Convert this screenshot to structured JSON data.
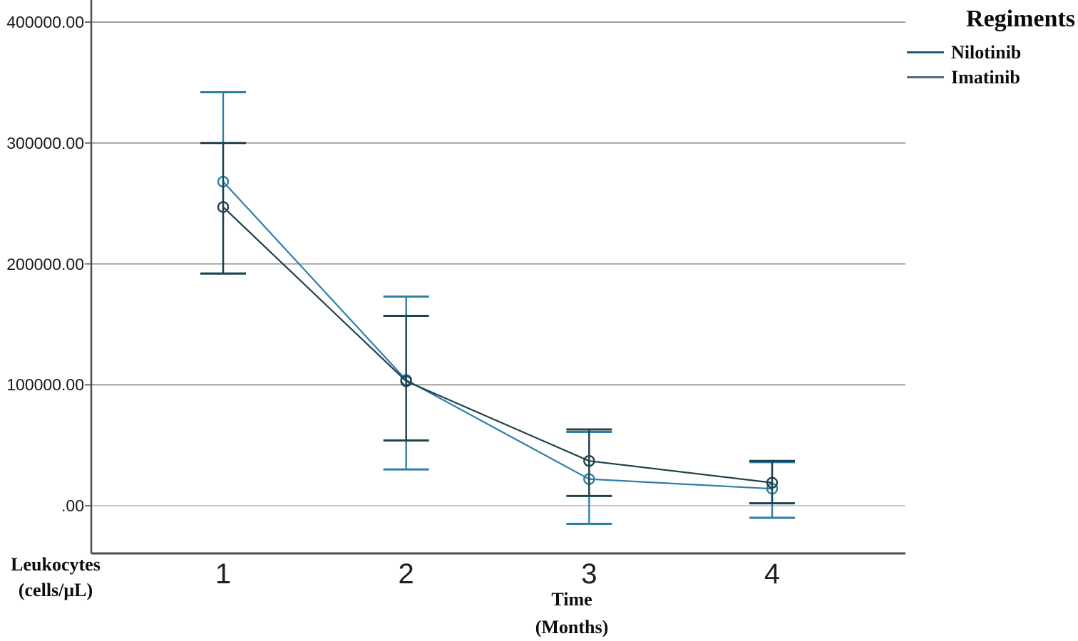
{
  "chart_data": {
    "type": "line",
    "x": [
      1,
      2,
      3,
      4
    ],
    "categories": [
      "1",
      "2",
      "3",
      "4"
    ],
    "xlabel": "Time (Months)",
    "xlabel_lines": [
      "Time",
      "(Months)"
    ],
    "ylabel": "Leukocytes (cells/μL)",
    "ylabel_lines": [
      "Leukocytes",
      "(cells/μL)"
    ],
    "ylim": [
      -40000,
      418000
    ],
    "grid": "horizontal",
    "yticks": [
      {
        "label": "400000.00",
        "value": 400000
      },
      {
        "label": "300000.00",
        "value": 300000
      },
      {
        "label": "200000.00",
        "value": 200000
      },
      {
        "label": "100000.00",
        "value": 100000
      },
      {
        "label": ".00",
        "value": 0
      }
    ],
    "legend_title": "Regiments",
    "legend_position": "top-right",
    "error_bar_style": "capped whiskers with open-circle mean markers",
    "series": [
      {
        "name": "Nilotinib",
        "color": "#2e7fa7",
        "legend_color": "#1d6075",
        "marker": "open-circle",
        "means": [
          268000,
          104000,
          22000,
          14000
        ],
        "ci_low": [
          192000,
          30000,
          -15000,
          -10000
        ],
        "ci_high": [
          342000,
          173000,
          61000,
          36000
        ]
      },
      {
        "name": "Imatinib",
        "color": "#21414c",
        "legend_color": "#4e6b74",
        "marker": "open-circle",
        "means": [
          247000,
          103000,
          37000,
          19000
        ],
        "ci_low": [
          192000,
          54000,
          8000,
          2000
        ],
        "ci_high": [
          300000,
          157000,
          63000,
          37000
        ]
      }
    ],
    "axis_color": "#4f4f4f",
    "grid_color": "#9e9e9e",
    "grid_color_zero": "#c7c7c7"
  }
}
